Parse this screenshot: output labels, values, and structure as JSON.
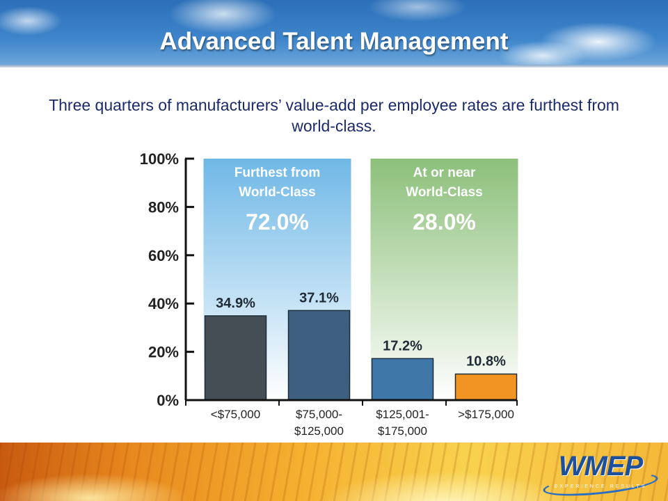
{
  "slide": {
    "title": "Advanced Talent Management",
    "subtitle": "Three quarters of manufacturers’ value-add per employee rates are furthest from world-class."
  },
  "chart_data": {
    "type": "bar",
    "categories": [
      [
        "<$75,000"
      ],
      [
        "$75,000-",
        "$125,000"
      ],
      [
        "$125,001-",
        "$175,000"
      ],
      [
        ">$175,000"
      ]
    ],
    "values": [
      34.9,
      37.1,
      17.2,
      10.8
    ],
    "value_labels": [
      "34.9%",
      "37.1%",
      "17.2%",
      "10.8%"
    ],
    "bar_colors": [
      "#454d55",
      "#3f5f80",
      "#3f77a8",
      "#f29422"
    ],
    "ylim": [
      0,
      100
    ],
    "yticks": [
      0,
      20,
      40,
      60,
      80,
      100
    ],
    "ytick_labels": [
      "0%",
      "20%",
      "40%",
      "60%",
      "80%",
      "100%"
    ],
    "groups": [
      {
        "label_lines": [
          "Furthest from",
          "World-Class"
        ],
        "value_label": "72.0%",
        "covers": [
          0,
          1
        ],
        "color_top": "#6fb8e6",
        "color_bottom": "#ffffff"
      },
      {
        "label_lines": [
          "At or near",
          "World-Class"
        ],
        "value_label": "28.0%",
        "covers": [
          2,
          3
        ],
        "color_top": "#8cc07a",
        "color_bottom": "#ffffff"
      }
    ],
    "grid": false
  },
  "logo": {
    "name": "WMEP",
    "tagline": "EXPERIENCE RESULTS"
  }
}
